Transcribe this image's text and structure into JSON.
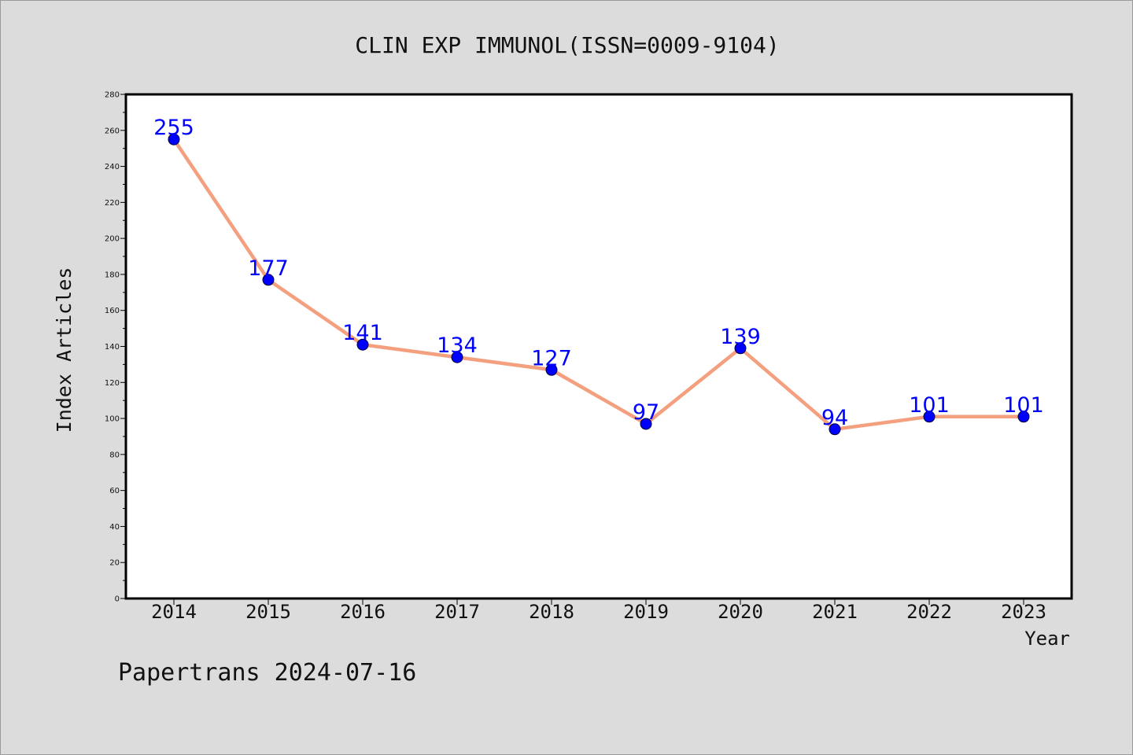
{
  "footer": {
    "text": "Papertrans 2024-07-16"
  },
  "colors": {
    "background": "#dcdcdc",
    "plot_background": "#ffffff",
    "line": "#f4a07f",
    "marker": "#0000ff",
    "data_label": "#0000ff",
    "text": "#111111"
  },
  "chart_data": {
    "type": "line",
    "title": "CLIN EXP IMMUNOL(ISSN=0009-9104)",
    "xlabel": "Year",
    "ylabel": "Index Articles",
    "x": [
      "2014",
      "2015",
      "2016",
      "2017",
      "2018",
      "2019",
      "2020",
      "2021",
      "2022",
      "2023"
    ],
    "series": [
      {
        "values": [
          255,
          177,
          141,
          134,
          127,
          97,
          139,
          94,
          101,
          101
        ]
      }
    ],
    "ylim": [
      0,
      280
    ],
    "yticks": [
      0,
      20,
      40,
      60,
      80,
      100,
      120,
      140,
      160,
      180,
      200,
      220,
      240,
      260,
      280
    ],
    "grid": false,
    "legend": "none",
    "data_labels": true
  }
}
